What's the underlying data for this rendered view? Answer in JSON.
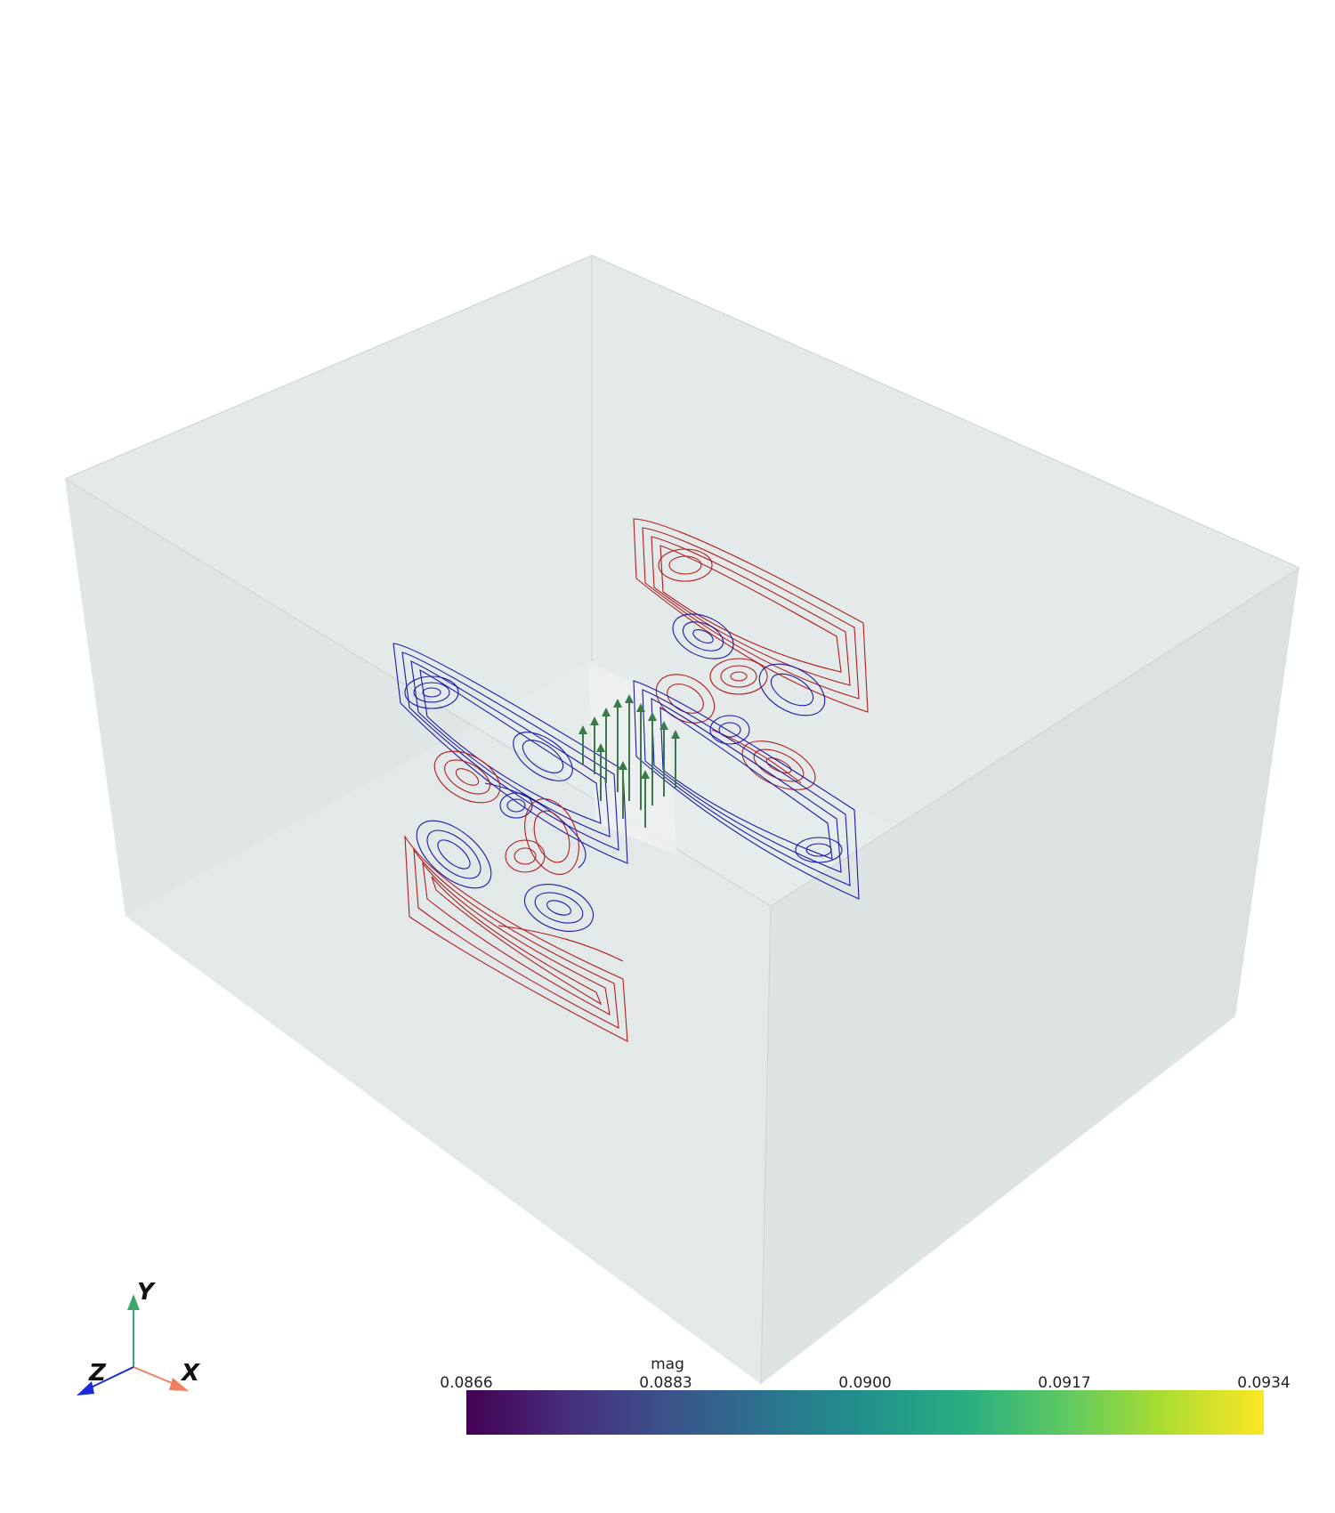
{
  "scene": {
    "background": "#ffffff",
    "box_fill": "#dfe5e5",
    "box_edge": "#d3d9d9",
    "positive_color": "#b01e1e",
    "negative_color": "#1a1aa8",
    "arrow_color": "#3a7a4a"
  },
  "axes_widget": {
    "x_label": "X",
    "y_label": "Y",
    "z_label": "Z",
    "x_color": "#f08060",
    "y_color": "#3aa86a",
    "z_color": "#1a2ad8"
  },
  "colorbar": {
    "title": "mag",
    "colormap": "viridis",
    "range": [
      0.0866,
      0.0934
    ],
    "ticks": [
      "0.0866",
      "0.0883",
      "0.0900",
      "0.0917",
      "0.0934"
    ]
  }
}
